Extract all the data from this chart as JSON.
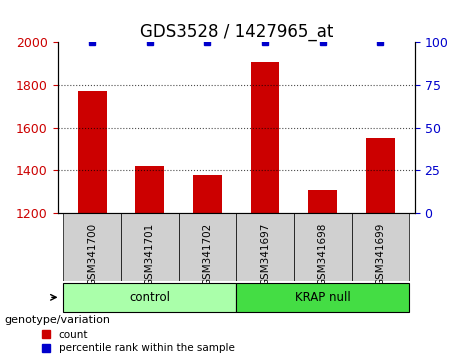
{
  "title": "GDS3528 / 1427965_at",
  "samples": [
    "GSM341700",
    "GSM341701",
    "GSM341702",
    "GSM341697",
    "GSM341698",
    "GSM341699"
  ],
  "counts": [
    1770,
    1420,
    1380,
    1910,
    1305,
    1550
  ],
  "percentiles": [
    100,
    100,
    100,
    100,
    100,
    100
  ],
  "ylim_left": [
    1200,
    2000
  ],
  "ylim_right": [
    0,
    100
  ],
  "yticks_left": [
    1200,
    1400,
    1600,
    1800,
    2000
  ],
  "yticks_right": [
    0,
    25,
    50,
    75,
    100
  ],
  "bar_color": "#cc0000",
  "dot_color": "#0000cc",
  "groups": [
    {
      "label": "control",
      "indices": [
        0,
        1,
        2
      ],
      "color": "#aaffaa"
    },
    {
      "label": "KRAP null",
      "indices": [
        3,
        4,
        5
      ],
      "color": "#44dd44"
    }
  ],
  "group_label": "genotype/variation",
  "legend_count_label": "count",
  "legend_pct_label": "percentile rank within the sample",
  "bar_width": 0.5,
  "title_fontsize": 12,
  "tick_fontsize": 9,
  "label_fontsize": 9
}
